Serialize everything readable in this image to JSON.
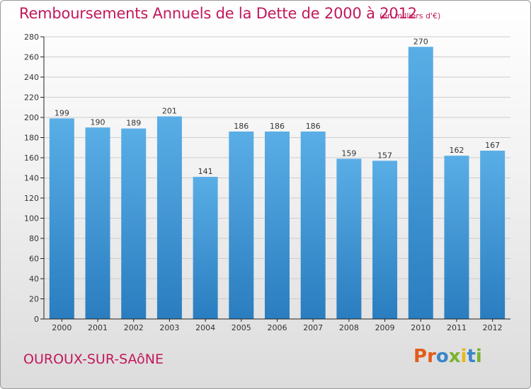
{
  "title": "Remboursements Annuels de la Dette de 2000 à 2012",
  "subtitle": "(en milliers d'€)",
  "city": "OUROUX-SUR-SAôNE",
  "logo": {
    "text": "Proxiti",
    "letters": [
      "P",
      "r",
      "o",
      "x",
      "i",
      "t",
      "i"
    ],
    "colors": [
      "#e25c1a",
      "#e25c1a",
      "#3a86c8",
      "#7ab32e",
      "#e8b817",
      "#3a86c8",
      "#7ab32e"
    ]
  },
  "colors": {
    "bar_top": "#5aaee6",
    "bar_bottom": "#2a7dbf",
    "grid": "#cccccc",
    "axis": "#222222",
    "accent": "#c2185b"
  },
  "chart_data": {
    "type": "bar",
    "categories": [
      "2000",
      "2001",
      "2002",
      "2003",
      "2004",
      "2005",
      "2006",
      "2007",
      "2008",
      "2009",
      "2010",
      "2011",
      "2012"
    ],
    "values": [
      199,
      190,
      189,
      201,
      141,
      186,
      186,
      186,
      159,
      157,
      270,
      162,
      167
    ],
    "title": "Remboursements Annuels de la Dette de 2000 à 2012",
    "xlabel": "",
    "ylabel": "",
    "ylim": [
      0,
      280
    ],
    "yticks": [
      0,
      20,
      40,
      60,
      80,
      100,
      120,
      140,
      160,
      180,
      200,
      220,
      240,
      260,
      280
    ],
    "grid": true,
    "legend": "none"
  }
}
